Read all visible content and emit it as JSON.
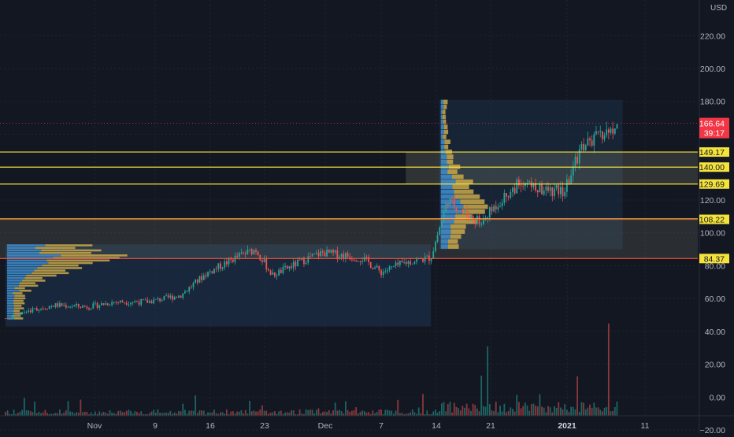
{
  "currency_label": "USD",
  "colors": {
    "background": "#131722",
    "grid": "#1e2433",
    "candle_up": "#26a69a",
    "candle_down": "#ef5350",
    "hline": "#f5e33c",
    "hline_red": "#f0523c",
    "vp_blue": "#3f8fd0",
    "vp_yellow": "#c9a84a",
    "zone_fill": "#c8c8a0",
    "profile_box": "#1d3550",
    "axis_text": "#b2b5be",
    "price_tag": "#f23645"
  },
  "price_axis": {
    "ticks": [
      "220.00",
      "200.00",
      "180.00",
      "120.00",
      "100.00",
      "80.00",
      "60.00",
      "40.00",
      "20.00",
      "0.00",
      "−20.00"
    ],
    "tick_values": [
      220,
      200,
      180,
      120,
      100,
      80,
      60,
      40,
      20,
      0,
      -20
    ]
  },
  "time_axis": {
    "labels": [
      "Nov",
      "9",
      "16",
      "23",
      "Dec",
      "7",
      "14",
      "21",
      "2021",
      "11"
    ]
  },
  "current_price": {
    "label": "166.64",
    "value": 166.64,
    "countdown": "39:17"
  },
  "levels": [
    {
      "label": "149.17",
      "value": 149.17,
      "style": "yellow"
    },
    {
      "label": "140.00",
      "value": 140.0,
      "style": "yellow"
    },
    {
      "label": "129.69",
      "value": 129.69,
      "style": "yellow"
    },
    {
      "label": "108.22",
      "value": 108.22,
      "style": "red"
    },
    {
      "label": "84.37",
      "value": 84.37,
      "style": "red"
    }
  ],
  "chart_data": {
    "type": "candlestick",
    "x_range": [
      "2020-10-26",
      "2021-01-12"
    ],
    "ylim": [
      -22,
      232
    ],
    "price_series": [
      [
        "2020-10-26",
        48
      ],
      [
        "2020-10-29",
        53
      ],
      [
        "2020-11-01",
        56
      ],
      [
        "2020-11-05",
        55
      ],
      [
        "2020-11-08",
        58
      ],
      [
        "2020-11-12",
        58
      ],
      [
        "2020-11-16",
        62
      ],
      [
        "2020-11-19",
        75
      ],
      [
        "2020-11-23",
        86
      ],
      [
        "2020-11-25",
        90
      ],
      [
        "2020-11-27",
        74
      ],
      [
        "2020-12-01",
        84
      ],
      [
        "2020-12-03",
        88
      ],
      [
        "2020-12-06",
        86
      ],
      [
        "2020-12-08",
        84
      ],
      [
        "2020-12-10",
        76
      ],
      [
        "2020-12-13",
        82
      ],
      [
        "2020-12-16",
        85
      ],
      [
        "2020-12-18",
        120
      ],
      [
        "2020-12-20",
        112
      ],
      [
        "2020-12-22",
        106
      ],
      [
        "2020-12-24",
        118
      ],
      [
        "2020-12-27",
        132
      ],
      [
        "2020-12-29",
        126
      ],
      [
        "2021-01-01",
        125
      ],
      [
        "2021-01-03",
        152
      ],
      [
        "2021-01-05",
        158
      ],
      [
        "2021-01-07",
        164
      ]
    ],
    "volume_note": "volume histogram plotted beneath candles",
    "volume_profiles": [
      {
        "range": [
          "2020-10-26",
          "2020-12-16"
        ],
        "price_range": [
          47,
          93
        ],
        "poc": 84.37
      },
      {
        "range": [
          "2020-12-17",
          "2021-01-08"
        ],
        "price_range": [
          90,
          181
        ],
        "poc": 108.22
      }
    ],
    "zones": [
      {
        "from": 129.69,
        "to": 149.17,
        "x_from": "2020-12-13"
      },
      {
        "from": 84.37,
        "to": 108.22,
        "x_from": "2020-10-26"
      }
    ]
  }
}
